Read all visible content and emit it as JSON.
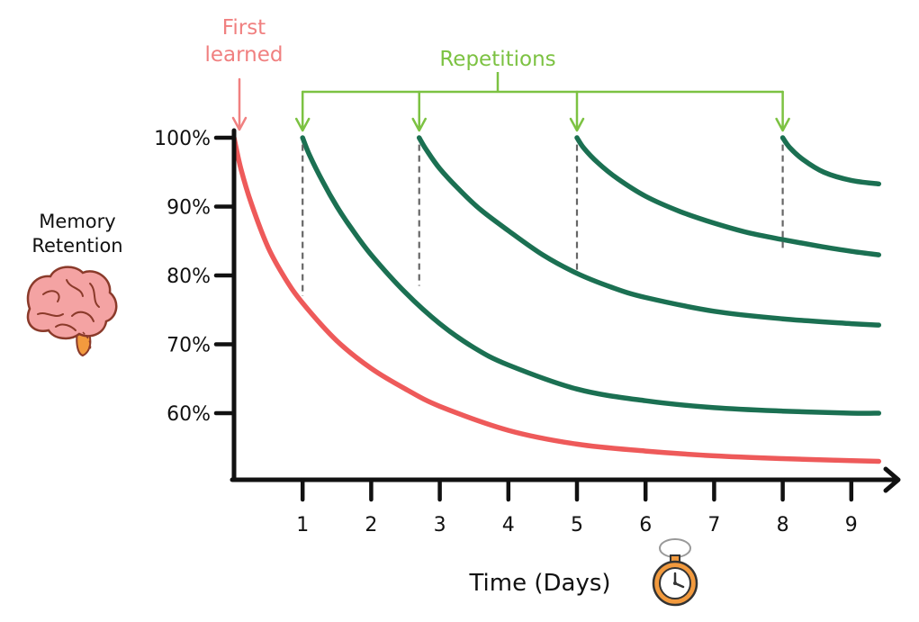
{
  "chart_data": {
    "type": "line",
    "title": "",
    "xlabel": "Time (Days)",
    "ylabel": "Memory Retention",
    "x_ticks": [
      1,
      2,
      3,
      4,
      5,
      6,
      7,
      8,
      9
    ],
    "y_ticks": [
      "100%",
      "90%",
      "80%",
      "70%",
      "60%"
    ],
    "y_tick_values": [
      100,
      90,
      80,
      70,
      60
    ],
    "xlim": [
      0,
      9.4
    ],
    "ylim": [
      50,
      100
    ],
    "grid": false,
    "annotations": {
      "first_learned": "First\nlearned",
      "repetitions": "Repetitions",
      "repetition_days": [
        1,
        2.7,
        5,
        8
      ]
    },
    "series": [
      {
        "color": "#ee5a5a",
        "x": [
          0,
          0.1,
          0.25,
          0.5,
          0.75,
          1,
          1.5,
          2,
          2.5,
          3,
          4,
          5,
          6,
          7,
          8,
          9,
          9.4
        ],
        "y": [
          100,
          95.5,
          90.5,
          84,
          79.5,
          76,
          70.5,
          66.5,
          63.5,
          61,
          57.5,
          55.5,
          54.5,
          53.8,
          53.4,
          53.1,
          53
        ]
      },
      {
        "color": "#1b7052",
        "x": [
          1,
          1.1,
          1.3,
          1.5,
          1.7,
          2,
          2.5,
          3,
          3.5,
          4,
          5,
          6,
          7,
          8,
          9,
          9.4
        ],
        "y": [
          100,
          97.5,
          93.5,
          90,
          87,
          83,
          77.5,
          73,
          69.5,
          67,
          63.5,
          61.8,
          60.8,
          60.3,
          60,
          60
        ]
      },
      {
        "color": "#1b7052",
        "x": [
          2.7,
          2.8,
          3,
          3.3,
          3.6,
          4,
          4.5,
          5,
          5.5,
          6,
          7,
          8,
          9,
          9.4
        ],
        "y": [
          100,
          98.3,
          95.5,
          92.3,
          89.5,
          86.5,
          83,
          80.3,
          78.3,
          76.8,
          74.8,
          73.7,
          73,
          72.8
        ]
      },
      {
        "color": "#1b7052",
        "x": [
          5,
          5.1,
          5.3,
          5.6,
          6,
          6.5,
          7,
          7.5,
          8,
          8.5,
          9,
          9.4
        ],
        "y": [
          100,
          98.5,
          96.4,
          94,
          91.5,
          89.3,
          87.6,
          86.2,
          85.2,
          84.3,
          83.5,
          83
        ]
      },
      {
        "color": "#1b7052",
        "x": [
          8,
          8.1,
          8.3,
          8.6,
          9,
          9.4
        ],
        "y": [
          100,
          98.6,
          96.8,
          95,
          93.8,
          93.3
        ]
      }
    ],
    "dashed_drop_lines": [
      {
        "x": 1,
        "y": 77
      },
      {
        "x": 2.7,
        "y": 78.5
      },
      {
        "x": 5,
        "y": 80.5
      },
      {
        "x": 8,
        "y": 84
      }
    ]
  },
  "colors": {
    "forgetting_curve": "#ee5a5a",
    "repetition_curve": "#1b7052",
    "first_learned": "#f08080",
    "repetitions": "#7cc242",
    "axis": "#111111",
    "dashes": "#666666",
    "brain_fill": "#f4a3a3",
    "brain_stem": "#f29a3e",
    "stopwatch": "#f29a3e"
  },
  "icons": {
    "brain": "brain-icon",
    "stopwatch": "stopwatch-icon"
  }
}
